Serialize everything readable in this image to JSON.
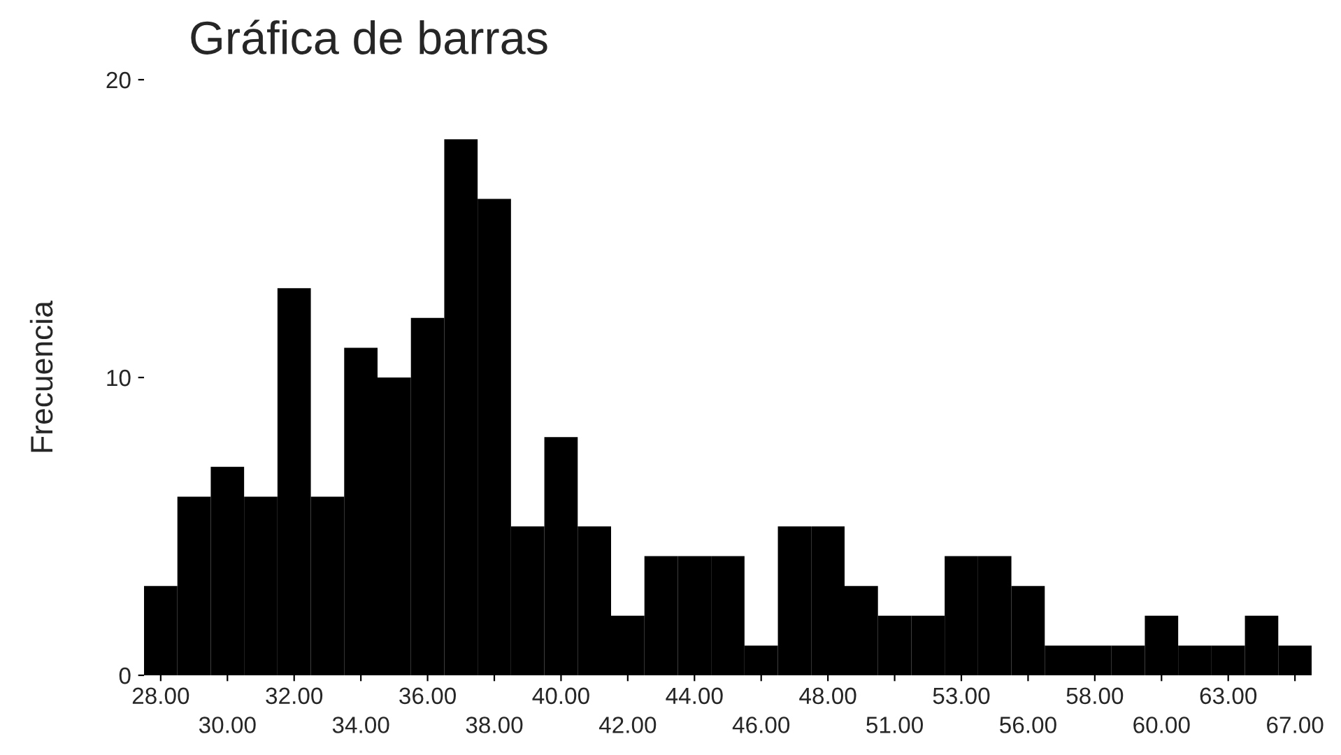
{
  "chart_data": {
    "type": "bar",
    "title": "Gráfica de barras",
    "ylabel": "Frecuencia",
    "categories": [
      "28.00",
      null,
      "30.00",
      null,
      "32.00",
      null,
      "34.00",
      null,
      "36.00",
      null,
      "38.00",
      null,
      "40.00",
      null,
      "42.00",
      null,
      "44.00",
      null,
      "46.00",
      null,
      "48.00",
      null,
      "51.00",
      null,
      "53.00",
      null,
      "56.00",
      null,
      "58.00",
      null,
      "60.00",
      null,
      "63.00",
      null,
      "67.00"
    ],
    "values": [
      3,
      6,
      7,
      6,
      13,
      6,
      11,
      10,
      12,
      18,
      16,
      5,
      8,
      5,
      2,
      4,
      4,
      4,
      1,
      5,
      5,
      3,
      2,
      2,
      4,
      4,
      3,
      1,
      1,
      1,
      2,
      1,
      1,
      2,
      1
    ],
    "color": "#000000",
    "ylim": [
      0,
      20
    ],
    "yticks": [
      0,
      10,
      20
    ],
    "grid": false
  }
}
